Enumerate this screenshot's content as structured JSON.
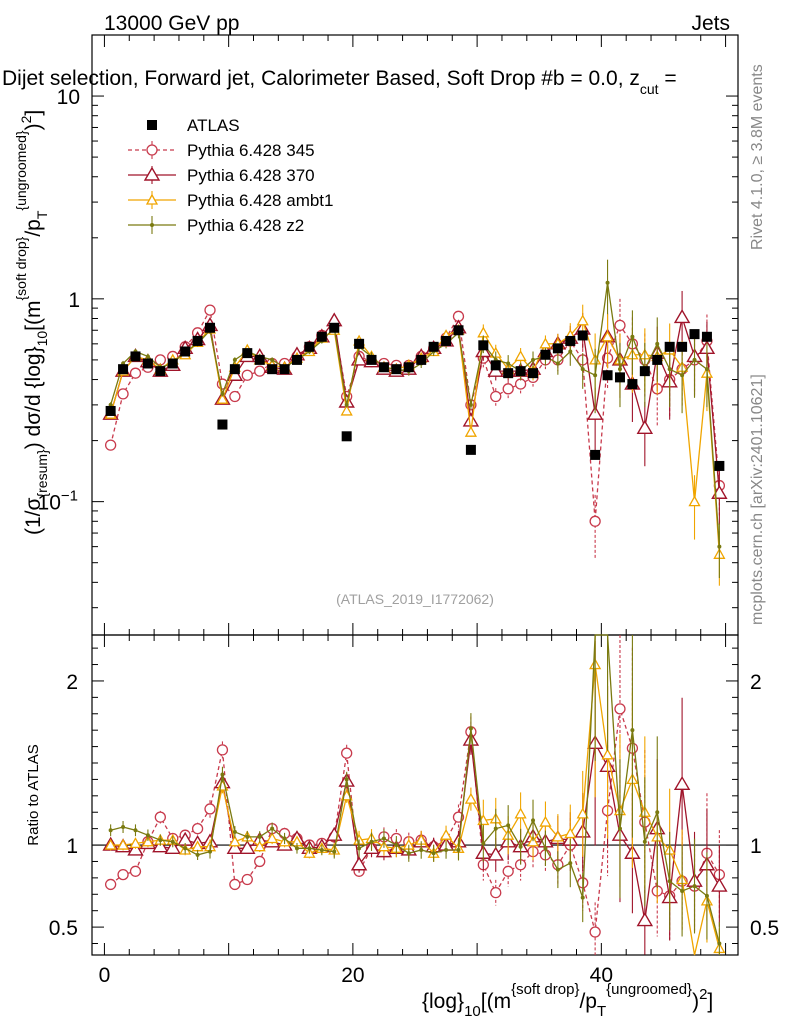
{
  "header": {
    "energy": "13000 GeV pp",
    "category": "Jets",
    "title": "Dijet selection, Forward jet, Calorimeter Based, Soft Drop #b = 0.0, z",
    "title_sub": "cut",
    "title_tail": " =",
    "watermark": "(ATLAS_2019_I1772062)",
    "side_rivet": "Rivet 4.1.0, ≥ 3.8M events",
    "side_mcplots": "mcplots.cern.ch [arXiv:2401.10621]"
  },
  "colors": {
    "atlas": "#000000",
    "p345": "#c83a4c",
    "p370": "#a0142a",
    "ambt1": "#f0a500",
    "z2": "#7a7a10"
  },
  "chart_data": {
    "type": "scatter",
    "x_tick_labels": [
      "0",
      "20",
      "40"
    ],
    "x_ticks": [
      0,
      20,
      40
    ],
    "xlim": [
      -1,
      51
    ],
    "main": {
      "ylabel_parts": [
        "(1/σ",
        "{resum}",
        ") dσ/d {log}",
        "10",
        "[(m",
        "{soft drop}",
        "/p",
        "T",
        "{ungroomed}",
        ")",
        "2",
        "]"
      ],
      "ylim": [
        0.022,
        20
      ],
      "yscale": "log",
      "y_tick_labels": [
        {
          "base": "10",
          "exp": "−1",
          "v": 0.1
        },
        {
          "base": "1",
          "exp": "",
          "v": 1
        },
        {
          "base": "10",
          "exp": "",
          "v": 10
        }
      ]
    },
    "ratio": {
      "ylabel": "Ratio to ATLAS",
      "ylim": [
        0.33,
        2.28
      ],
      "y_tick_labels": [
        "0.5",
        "1",
        "2"
      ],
      "y_ticks": [
        0.5,
        1,
        2
      ]
    },
    "xlabel_parts": [
      "{log}",
      "10",
      "[(m",
      "{soft drop}",
      "/p",
      "T",
      "{ungroomed}",
      ")",
      "2",
      "]"
    ],
    "x": [
      0.5,
      1.5,
      2.5,
      3.5,
      4.5,
      5.5,
      6.5,
      7.5,
      8.5,
      9.5,
      10.5,
      11.5,
      12.5,
      13.5,
      14.5,
      15.5,
      16.5,
      17.5,
      18.5,
      19.5,
      20.5,
      21.5,
      22.5,
      23.5,
      24.5,
      25.5,
      26.5,
      27.5,
      28.5,
      29.5,
      30.5,
      31.5,
      32.5,
      33.5,
      34.5,
      35.5,
      36.5,
      37.5,
      38.5,
      39.5,
      40.5,
      41.5,
      42.5,
      43.5,
      44.5,
      45.5,
      46.5,
      47.5,
      48.5,
      49.5
    ],
    "series": [
      {
        "name": "ATLAS",
        "key": "atlas",
        "marker": "square",
        "values": [
          0.28,
          0.45,
          0.52,
          0.48,
          0.44,
          0.48,
          0.55,
          0.62,
          0.72,
          0.24,
          0.45,
          0.54,
          0.5,
          0.45,
          0.45,
          0.5,
          0.58,
          0.65,
          0.72,
          0.21,
          0.6,
          0.5,
          0.46,
          0.45,
          0.46,
          0.5,
          0.58,
          0.62,
          0.7,
          0.18,
          0.59,
          0.47,
          0.43,
          0.44,
          0.43,
          0.53,
          0.57,
          0.62,
          0.66,
          0.17,
          0.42,
          0.41,
          0.38,
          0.44,
          0.5,
          0.58,
          0.58,
          0.67,
          0.65,
          0.15
        ]
      },
      {
        "name": "Pythia 6.428 345",
        "key": "p345",
        "marker": "circle",
        "values": [
          0.19,
          0.34,
          0.43,
          0.46,
          0.5,
          0.52,
          0.58,
          0.68,
          0.88,
          0.38,
          0.33,
          0.42,
          0.44,
          0.48,
          0.48,
          0.52,
          0.58,
          0.66,
          0.75,
          0.33,
          0.52,
          0.49,
          0.48,
          0.47,
          0.47,
          0.52,
          0.57,
          0.64,
          0.82,
          0.3,
          0.51,
          0.33,
          0.36,
          0.38,
          0.41,
          0.5,
          0.5,
          0.62,
          0.5,
          0.08,
          0.51,
          0.74,
          0.6,
          0.5,
          0.36,
          0.4,
          0.45,
          0.5,
          0.62,
          0.12
        ],
        "ratio": [
          0.76,
          0.82,
          0.84,
          1.02,
          1.17,
          1.04,
          1.06,
          1.1,
          1.22,
          1.58,
          0.76,
          0.79,
          0.9,
          1.1,
          1.07,
          1.04,
          1.0,
          1.01,
          1.05,
          1.56,
          0.84,
          0.98,
          1.05,
          1.04,
          1.02,
          1.03,
          0.99,
          1.03,
          1.17,
          1.69,
          0.88,
          0.71,
          0.84,
          0.88,
          0.96,
          0.94,
          0.88,
          1.0,
          0.77,
          0.47,
          1.21,
          1.83,
          1.59,
          1.14,
          0.72,
          0.69,
          0.78,
          0.75,
          0.95,
          0.82
        ],
        "yerr": [
          0.03,
          0.03,
          0.03,
          0.03,
          0.03,
          0.03,
          0.03,
          0.03,
          0.04,
          0.03,
          0.03,
          0.03,
          0.03,
          0.03,
          0.03,
          0.03,
          0.03,
          0.03,
          0.04,
          0.03,
          0.05,
          0.05,
          0.05,
          0.05,
          0.05,
          0.05,
          0.05,
          0.05,
          0.06,
          0.05,
          0.1,
          0.1,
          0.1,
          0.1,
          0.1,
          0.1,
          0.12,
          0.15,
          0.2,
          0.35,
          0.3,
          0.35,
          0.35,
          0.35,
          0.35,
          0.35,
          0.35,
          0.35,
          0.35,
          0.3
        ]
      },
      {
        "name": "Pythia 6.428 370",
        "key": "p370",
        "marker": "triangle",
        "values": [
          0.27,
          0.44,
          0.52,
          0.49,
          0.44,
          0.47,
          0.57,
          0.63,
          0.74,
          0.32,
          0.42,
          0.52,
          0.52,
          0.46,
          0.45,
          0.53,
          0.57,
          0.65,
          0.78,
          0.31,
          0.5,
          0.49,
          0.45,
          0.44,
          0.45,
          0.52,
          0.57,
          0.62,
          0.72,
          0.25,
          0.55,
          0.44,
          0.44,
          0.44,
          0.45,
          0.55,
          0.6,
          0.64,
          0.71,
          0.27,
          0.65,
          0.5,
          0.38,
          0.23,
          0.54,
          0.39,
          0.81,
          0.52,
          0.57,
          0.11
        ],
        "ratio": [
          1.0,
          0.99,
          0.97,
          1.01,
          0.99,
          0.98,
          1.03,
          1.01,
          1.02,
          1.38,
          0.98,
          0.98,
          1.03,
          1.02,
          1.0,
          1.04,
          0.98,
          0.99,
          1.06,
          1.39,
          0.88,
          0.98,
          0.96,
          0.98,
          0.97,
          1.02,
          0.99,
          1.0,
          1.02,
          1.64,
          0.95,
          0.94,
          1.02,
          0.99,
          1.05,
          1.02,
          1.04,
          1.03,
          1.08,
          1.62,
          1.48,
          1.06,
          0.95,
          0.54,
          1.1,
          0.68,
          1.37,
          0.78,
          0.88,
          0.75
        ],
        "yerr": [
          0.03,
          0.03,
          0.03,
          0.03,
          0.03,
          0.03,
          0.03,
          0.03,
          0.04,
          0.03,
          0.03,
          0.03,
          0.03,
          0.03,
          0.03,
          0.03,
          0.03,
          0.03,
          0.04,
          0.03,
          0.05,
          0.05,
          0.05,
          0.05,
          0.05,
          0.05,
          0.05,
          0.05,
          0.06,
          0.05,
          0.1,
          0.1,
          0.1,
          0.1,
          0.1,
          0.1,
          0.12,
          0.15,
          0.2,
          0.35,
          0.3,
          0.35,
          0.35,
          0.35,
          0.35,
          0.35,
          0.35,
          0.35,
          0.35,
          0.3
        ]
      },
      {
        "name": "Pythia 6.428 ambt1",
        "key": "ambt1",
        "marker": "triangle-small",
        "values": [
          0.27,
          0.44,
          0.52,
          0.5,
          0.45,
          0.5,
          0.53,
          0.61,
          0.71,
          0.32,
          0.46,
          0.56,
          0.5,
          0.47,
          0.46,
          0.51,
          0.55,
          0.64,
          0.7,
          0.28,
          0.62,
          0.52,
          0.46,
          0.45,
          0.47,
          0.51,
          0.55,
          0.66,
          0.7,
          0.22,
          0.68,
          0.54,
          0.45,
          0.52,
          0.44,
          0.6,
          0.6,
          0.66,
          0.78,
          0.5,
          0.65,
          0.5,
          0.53,
          0.53,
          0.52,
          0.56,
          0.46,
          0.1,
          0.43,
          0.055
        ],
        "ratio": [
          1.0,
          1.0,
          1.01,
          1.02,
          1.03,
          1.03,
          0.97,
          0.99,
          0.99,
          1.36,
          1.02,
          1.05,
          0.99,
          1.04,
          1.02,
          1.02,
          0.95,
          0.98,
          0.97,
          1.3,
          1.03,
          1.04,
          0.99,
          0.98,
          1.0,
          1.03,
          0.95,
          1.06,
          0.98,
          1.28,
          1.15,
          1.16,
          1.06,
          1.19,
          1.02,
          1.14,
          1.05,
          1.07,
          1.19,
          2.1,
          1.55,
          1.21,
          1.4,
          1.2,
          1.05,
          0.97,
          0.79,
          0.15,
          0.66,
          0.37
        ],
        "yerr": [
          0.03,
          0.03,
          0.03,
          0.03,
          0.03,
          0.03,
          0.03,
          0.03,
          0.04,
          0.03,
          0.03,
          0.03,
          0.03,
          0.03,
          0.03,
          0.03,
          0.03,
          0.03,
          0.04,
          0.03,
          0.05,
          0.05,
          0.05,
          0.05,
          0.05,
          0.05,
          0.05,
          0.05,
          0.06,
          0.05,
          0.1,
          0.1,
          0.1,
          0.1,
          0.1,
          0.1,
          0.12,
          0.15,
          0.2,
          0.35,
          0.3,
          0.35,
          0.35,
          0.35,
          0.35,
          0.35,
          0.35,
          0.35,
          0.35,
          0.3
        ]
      },
      {
        "name": "Pythia 6.428 z2",
        "key": "z2",
        "marker": "dot",
        "values": [
          0.3,
          0.48,
          0.55,
          0.52,
          0.46,
          0.48,
          0.55,
          0.6,
          0.7,
          0.34,
          0.5,
          0.55,
          0.52,
          0.5,
          0.46,
          0.5,
          0.55,
          0.62,
          0.72,
          0.3,
          0.58,
          0.52,
          0.46,
          0.45,
          0.44,
          0.48,
          0.55,
          0.6,
          0.68,
          0.3,
          0.6,
          0.5,
          0.48,
          0.44,
          0.5,
          0.52,
          0.48,
          0.55,
          0.45,
          0.42,
          1.2,
          0.45,
          0.65,
          0.45,
          0.6,
          0.45,
          0.42,
          0.5,
          0.45,
          0.06
        ],
        "ratio": [
          1.09,
          1.11,
          1.09,
          1.06,
          1.03,
          1.02,
          0.98,
          0.94,
          0.96,
          1.43,
          1.08,
          1.05,
          1.05,
          1.1,
          1.04,
          0.98,
          0.98,
          0.97,
          0.96,
          1.4,
          0.98,
          1.02,
          1.04,
          1.0,
          0.95,
          0.97,
          0.95,
          0.97,
          0.97,
          1.71,
          1.01,
          1.1,
          1.12,
          0.99,
          1.15,
          0.98,
          0.85,
          0.89,
          0.68,
          2.46,
          2.35,
          1.1,
          1.7,
          1.02,
          1.2,
          0.78,
          0.72,
          0.75,
          0.69,
          0.4
        ],
        "yerr": [
          0.03,
          0.03,
          0.03,
          0.03,
          0.03,
          0.03,
          0.03,
          0.03,
          0.04,
          0.03,
          0.03,
          0.03,
          0.03,
          0.03,
          0.03,
          0.03,
          0.03,
          0.03,
          0.04,
          0.03,
          0.05,
          0.05,
          0.05,
          0.05,
          0.05,
          0.05,
          0.05,
          0.05,
          0.06,
          0.05,
          0.1,
          0.1,
          0.1,
          0.1,
          0.1,
          0.1,
          0.12,
          0.15,
          0.2,
          0.35,
          0.3,
          0.35,
          0.35,
          0.35,
          0.35,
          0.35,
          0.35,
          0.35,
          0.35,
          0.3
        ]
      }
    ]
  }
}
